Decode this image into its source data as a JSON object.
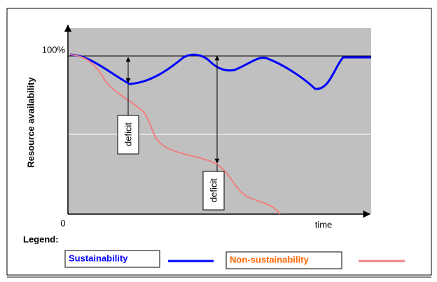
{
  "diagram": {
    "y_axis_label": "Resource availability",
    "y_top_label": "100%",
    "origin_label": "0",
    "x_axis_label": "time",
    "deficit_labels": [
      "deficit",
      "deficit"
    ],
    "legend": {
      "title": "Legend:",
      "items": [
        "Sustainability",
        "Non-sustainability"
      ]
    }
  }
}
